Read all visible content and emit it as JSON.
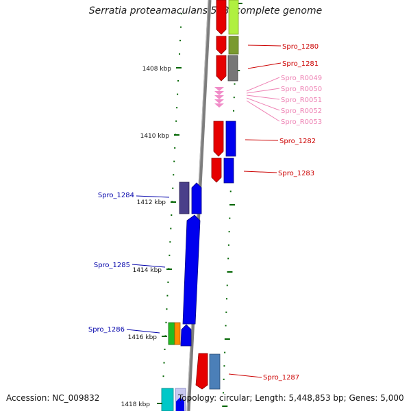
{
  "title": "Serratia proteamaculans 568, complete genome",
  "footer": {
    "accession": "Accession: NC_009832",
    "topology": "Topology: circular; Length: 5,448,853 bp; Genes: 5,000"
  },
  "colors": {
    "axis": "#808080",
    "tick": "#006400",
    "red_label": "#cc0000",
    "pink_label": "#ee82b4",
    "blue_label": "#0000aa"
  },
  "kbp_labels": [
    "1408 kbp",
    "1410 kbp",
    "1412 kbp",
    "1414 kbp",
    "1416 kbp",
    "1418 kbp"
  ],
  "gene_labels": [
    {
      "text": "Spro_1280",
      "color": "#cc0000"
    },
    {
      "text": "Spro_1281",
      "color": "#cc0000"
    },
    {
      "text": "Spro_R0049",
      "color": "#ee82b4"
    },
    {
      "text": "Spro_R0050",
      "color": "#ee82b4"
    },
    {
      "text": "Spro_R0051",
      "color": "#ee82b4"
    },
    {
      "text": "Spro_R0052",
      "color": "#ee82b4"
    },
    {
      "text": "Spro_R0053",
      "color": "#ee82b4"
    },
    {
      "text": "Spro_1282",
      "color": "#cc0000"
    },
    {
      "text": "Spro_1283",
      "color": "#cc0000"
    },
    {
      "text": "Spro_1284",
      "color": "#0000aa"
    },
    {
      "text": "Spro_1285",
      "color": "#0000aa"
    },
    {
      "text": "Spro_1286",
      "color": "#0000aa"
    },
    {
      "text": "Spro_1287",
      "color": "#cc0000"
    }
  ]
}
